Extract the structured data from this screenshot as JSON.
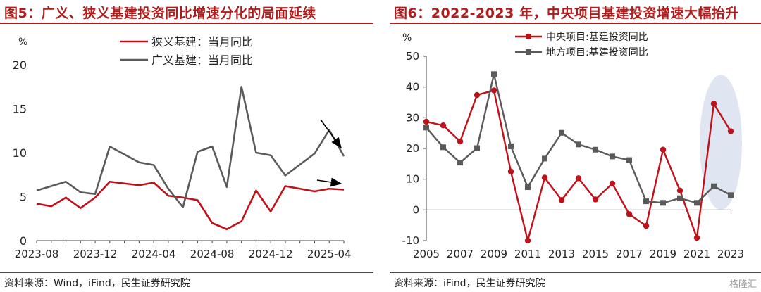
{
  "left_panel": {
    "title": "图5：广义、狭义基建投资同比增速分化的局面延续",
    "source": "资料来源：Wind，iFind，民生证券研究院"
  },
  "right_panel": {
    "title": "图6：2022-2023 年，中央项目基建投资增速大幅抬升",
    "source": "资料来源：iFind，民生证券研究院"
  },
  "watermark": "格隆汇",
  "colors": {
    "accent": "#b01c1c",
    "red": "#c0111b",
    "gray": "#5a5a5a",
    "highlight": "#dde3f0"
  },
  "chart_data": [
    {
      "type": "line",
      "ylabel": "%",
      "ylim": [
        0,
        20
      ],
      "yticks": [
        0,
        5,
        10,
        15,
        20
      ],
      "x": [
        "2023-08",
        "2023-09",
        "2023-10",
        "2023-11",
        "2023-12",
        "2024-01",
        "2024-02",
        "2024-03",
        "2024-04",
        "2024-05",
        "2024-06",
        "2024-07",
        "2024-08",
        "2024-09",
        "2024-10",
        "2024-11",
        "2024-12",
        "2025-01",
        "2025-02",
        "2025-03",
        "2025-04",
        "2025-05"
      ],
      "xtick_labels": [
        "2023-08",
        "2023-12",
        "2024-04",
        "2024-08",
        "2024-12",
        "2025-04"
      ],
      "legend_position": "top",
      "series": [
        {
          "name": "狭义基建：当月同比",
          "color": "#c0111b",
          "points": [
            [
              "2023-08",
              4.2
            ],
            [
              "2023-09",
              3.9
            ],
            [
              "2023-10",
              4.9
            ],
            [
              "2023-11",
              3.7
            ],
            [
              "2023-12",
              4.9
            ],
            [
              "2024-01",
              6.7
            ],
            [
              "2024-03",
              6.3
            ],
            [
              "2024-04",
              6.6
            ],
            [
              "2024-05",
              5.1
            ],
            [
              "2024-06",
              4.9
            ],
            [
              "2024-07",
              4.6
            ],
            [
              "2024-08",
              2.0
            ],
            [
              "2024-09",
              1.3
            ],
            [
              "2024-10",
              2.2
            ],
            [
              "2024-11",
              5.7
            ],
            [
              "2024-12",
              3.3
            ],
            [
              "2025-01",
              6.2
            ],
            [
              "2025-03",
              5.6
            ],
            [
              "2025-04",
              5.9
            ],
            [
              "2025-05",
              5.8
            ]
          ]
        },
        {
          "name": "广义基建：当月同比",
          "color": "#5a5a5a",
          "points": [
            [
              "2023-08",
              5.7
            ],
            [
              "2023-09",
              6.2
            ],
            [
              "2023-10",
              6.7
            ],
            [
              "2023-11",
              5.5
            ],
            [
              "2023-12",
              5.3
            ],
            [
              "2024-01",
              10.7
            ],
            [
              "2024-03",
              8.9
            ],
            [
              "2024-04",
              8.6
            ],
            [
              "2024-05",
              5.9
            ],
            [
              "2024-06",
              3.8
            ],
            [
              "2024-07",
              10.1
            ],
            [
              "2024-08",
              10.7
            ],
            [
              "2024-09",
              6.1
            ],
            [
              "2024-10",
              17.5
            ],
            [
              "2024-11",
              10.0
            ],
            [
              "2024-12",
              9.7
            ],
            [
              "2025-01",
              7.4
            ],
            [
              "2025-03",
              9.9
            ],
            [
              "2025-04",
              12.6
            ],
            [
              "2025-05",
              9.6
            ]
          ]
        }
      ]
    },
    {
      "type": "line",
      "ylabel": "%",
      "ylim": [
        -10,
        50
      ],
      "yticks": [
        -10,
        0,
        10,
        20,
        30,
        40,
        50
      ],
      "x": [
        2005,
        2006,
        2007,
        2008,
        2009,
        2010,
        2011,
        2012,
        2013,
        2014,
        2015,
        2016,
        2017,
        2018,
        2019,
        2020,
        2021,
        2022,
        2023
      ],
      "xtick_labels": [
        "2005",
        "2007",
        "2009",
        "2011",
        "2013",
        "2015",
        "2017",
        "2019",
        "2021",
        "2023"
      ],
      "legend_position": "top",
      "series": [
        {
          "name": "中央项目:基建投资同比",
          "color": "#c0111b",
          "marker": "circle",
          "values": [
            28.7,
            27.5,
            22.3,
            37.4,
            38.9,
            12.5,
            -10.0,
            10.5,
            3.2,
            10.3,
            3.4,
            8.6,
            -1.4,
            -5.2,
            19.6,
            6.3,
            -9.1,
            34.6,
            25.6
          ]
        },
        {
          "name": "地方项目:基建投资同比",
          "color": "#5a5a5a",
          "marker": "square",
          "values": [
            26.8,
            20.4,
            15.4,
            20.1,
            44.2,
            20.7,
            7.4,
            16.7,
            25.1,
            21.3,
            19.6,
            17.4,
            16.2,
            2.8,
            2.3,
            3.8,
            2.3,
            7.7,
            4.8
          ]
        }
      ]
    }
  ]
}
